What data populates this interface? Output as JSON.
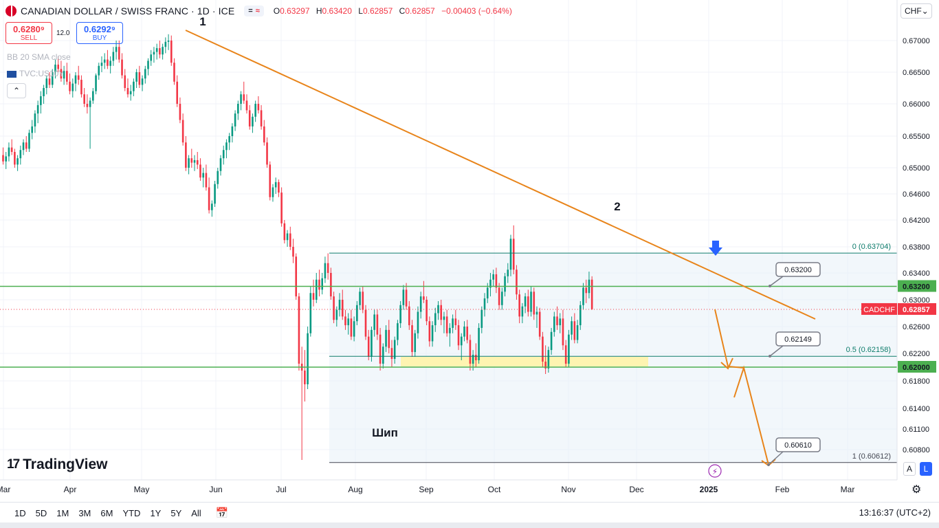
{
  "header": {
    "symbol": "CANADIAN DOLLAR / SWISS FRANC · 1D · ICE",
    "ohlc": {
      "o_label": "O",
      "o": "0.63297",
      "h_label": "H",
      "h": "0.63420",
      "l_label": "L",
      "l": "0.62857",
      "c_label": "C",
      "c": "0.62857",
      "change": "−0.00403 (−0.64%)"
    }
  },
  "trade": {
    "sell_price": "0.6280⁹",
    "sell_label": "SELL",
    "buy_price": "0.6292⁹",
    "buy_label": "BUY",
    "spread": "12.0"
  },
  "indicators": {
    "bb": "BB 20 SMA close",
    "tvc": "TVC:US10Y"
  },
  "collapse_icon": "chevron-up-icon",
  "currency": "CHF",
  "brand": "TradingView",
  "bottom_bar": {
    "ranges": [
      "1D",
      "5D",
      "1M",
      "3M",
      "6M",
      "YTD",
      "1Y",
      "5Y",
      "All"
    ],
    "clock": "13:16:37 (UTC+2)"
  },
  "scale_buttons": {
    "auto": "A",
    "log": "L"
  },
  "colors": {
    "up": "#089981",
    "down": "#f23645",
    "trend": "#e8841a",
    "level": "#4caf50",
    "fib": "#0e7c6b",
    "arrow": "#2962ff"
  },
  "chart_data": {
    "type": "candlestick",
    "y_ticks": [
      "0.67000",
      "0.66500",
      "0.66000",
      "0.65500",
      "0.65000",
      "0.64600",
      "0.64200",
      "0.63800",
      "0.63400",
      "0.63000",
      "0.62600",
      "0.62200",
      "0.61800",
      "0.61400",
      "0.61100",
      "0.60800"
    ],
    "x_ticks": [
      "Mar",
      "Apr",
      "May",
      "Jun",
      "Jul",
      "Aug",
      "Sep",
      "Oct",
      "Nov",
      "Dec",
      "2025",
      "Feb",
      "Mar"
    ],
    "price_labels": {
      "level_1": "0.63200",
      "current_name": "CADCHF",
      "current": "0.62857",
      "level_2": "0.62000"
    },
    "fib": {
      "f0": "0 (0.63704)",
      "f05": "0.5 (0.62158)",
      "f1": "1 (0.60612)",
      "v0": 0.63704,
      "v05": 0.62158,
      "v1": 0.60612
    },
    "callouts": [
      "0.63200",
      "0.62149",
      "0.60610"
    ],
    "annotations": {
      "p1": "1",
      "p2": "2",
      "spike": "Шип"
    },
    "levels": [
      0.632,
      0.62
    ],
    "candles": [
      [
        0.652,
        0.6532,
        0.6505,
        0.651
      ],
      [
        0.651,
        0.6525,
        0.6498,
        0.6518
      ],
      [
        0.6518,
        0.654,
        0.651,
        0.6532
      ],
      [
        0.6532,
        0.6545,
        0.652,
        0.6525
      ],
      [
        0.6525,
        0.653,
        0.65,
        0.6505
      ],
      [
        0.6505,
        0.652,
        0.6495,
        0.6515
      ],
      [
        0.6515,
        0.6535,
        0.6505,
        0.6528
      ],
      [
        0.6528,
        0.6545,
        0.652,
        0.654
      ],
      [
        0.654,
        0.655,
        0.6525,
        0.653
      ],
      [
        0.653,
        0.656,
        0.6525,
        0.6555
      ],
      [
        0.6555,
        0.6575,
        0.6545,
        0.6565
      ],
      [
        0.6565,
        0.659,
        0.6555,
        0.6585
      ],
      [
        0.6585,
        0.6605,
        0.657,
        0.6598
      ],
      [
        0.6598,
        0.662,
        0.6585,
        0.6612
      ],
      [
        0.6612,
        0.663,
        0.66,
        0.6625
      ],
      [
        0.6625,
        0.6645,
        0.6615,
        0.664
      ],
      [
        0.664,
        0.665,
        0.6625,
        0.663
      ],
      [
        0.663,
        0.6655,
        0.6625,
        0.665
      ],
      [
        0.665,
        0.667,
        0.664,
        0.6662
      ],
      [
        0.6662,
        0.6675,
        0.665,
        0.6655
      ],
      [
        0.6655,
        0.6668,
        0.6635,
        0.664
      ],
      [
        0.664,
        0.666,
        0.663,
        0.6652
      ],
      [
        0.6652,
        0.6665,
        0.663,
        0.6635
      ],
      [
        0.6635,
        0.6648,
        0.6615,
        0.662
      ],
      [
        0.662,
        0.664,
        0.661,
        0.6632
      ],
      [
        0.6632,
        0.665,
        0.662,
        0.6645
      ],
      [
        0.6645,
        0.666,
        0.663,
        0.6638
      ],
      [
        0.6638,
        0.6645,
        0.661,
        0.6615
      ],
      [
        0.6615,
        0.6625,
        0.6595,
        0.66
      ],
      [
        0.66,
        0.6615,
        0.6585,
        0.6595
      ],
      [
        0.6595,
        0.661,
        0.653,
        0.6605
      ],
      [
        0.6605,
        0.6625,
        0.66,
        0.662
      ],
      [
        0.662,
        0.6648,
        0.6615,
        0.6645
      ],
      [
        0.6645,
        0.6665,
        0.6638,
        0.666
      ],
      [
        0.666,
        0.6675,
        0.665,
        0.6665
      ],
      [
        0.6665,
        0.668,
        0.6655,
        0.667
      ],
      [
        0.667,
        0.6685,
        0.6655,
        0.666
      ],
      [
        0.666,
        0.6675,
        0.6648,
        0.6668
      ],
      [
        0.6668,
        0.669,
        0.666,
        0.6682
      ],
      [
        0.6682,
        0.67,
        0.667,
        0.669
      ],
      [
        0.669,
        0.67,
        0.6665,
        0.667
      ],
      [
        0.667,
        0.668,
        0.664,
        0.6645
      ],
      [
        0.6645,
        0.6655,
        0.662,
        0.6625
      ],
      [
        0.6625,
        0.664,
        0.661,
        0.6615
      ],
      [
        0.6615,
        0.663,
        0.6605,
        0.662
      ],
      [
        0.662,
        0.664,
        0.6612,
        0.6635
      ],
      [
        0.6635,
        0.6655,
        0.6625,
        0.665
      ],
      [
        0.665,
        0.666,
        0.6625,
        0.663
      ],
      [
        0.663,
        0.6645,
        0.662,
        0.664
      ],
      [
        0.664,
        0.666,
        0.6632,
        0.6655
      ],
      [
        0.6655,
        0.6672,
        0.6645,
        0.6668
      ],
      [
        0.6668,
        0.6685,
        0.666,
        0.6678
      ],
      [
        0.6678,
        0.669,
        0.6665,
        0.6682
      ],
      [
        0.6682,
        0.6695,
        0.667,
        0.6688
      ],
      [
        0.6688,
        0.67,
        0.6672,
        0.6678
      ],
      [
        0.6678,
        0.6695,
        0.667,
        0.669
      ],
      [
        0.669,
        0.6705,
        0.668,
        0.6698
      ],
      [
        0.6698,
        0.671,
        0.6685,
        0.67
      ],
      [
        0.67,
        0.6708,
        0.666,
        0.6665
      ],
      [
        0.6665,
        0.6672,
        0.663,
        0.6635
      ],
      [
        0.6635,
        0.6645,
        0.6595,
        0.66
      ],
      [
        0.66,
        0.661,
        0.657,
        0.6575
      ],
      [
        0.6575,
        0.6585,
        0.6535,
        0.654
      ],
      [
        0.654,
        0.655,
        0.6495,
        0.65
      ],
      [
        0.65,
        0.652,
        0.649,
        0.6515
      ],
      [
        0.6515,
        0.653,
        0.65,
        0.6508
      ],
      [
        0.6508,
        0.652,
        0.6495,
        0.6512
      ],
      [
        0.6512,
        0.6525,
        0.6498,
        0.6505
      ],
      [
        0.6505,
        0.6515,
        0.648,
        0.6485
      ],
      [
        0.6485,
        0.65,
        0.647,
        0.6492
      ],
      [
        0.6492,
        0.6505,
        0.6465,
        0.647
      ],
      [
        0.647,
        0.6485,
        0.643,
        0.6435
      ],
      [
        0.6435,
        0.645,
        0.6425,
        0.6445
      ],
      [
        0.6445,
        0.648,
        0.644,
        0.6475
      ],
      [
        0.6475,
        0.65,
        0.6468,
        0.6495
      ],
      [
        0.6495,
        0.652,
        0.6488,
        0.6515
      ],
      [
        0.6515,
        0.6535,
        0.6505,
        0.6528
      ],
      [
        0.6528,
        0.6545,
        0.6515,
        0.654
      ],
      [
        0.654,
        0.6555,
        0.6528,
        0.655
      ],
      [
        0.655,
        0.657,
        0.654,
        0.6565
      ],
      [
        0.6565,
        0.659,
        0.6558,
        0.6585
      ],
      [
        0.6585,
        0.6605,
        0.6575,
        0.66
      ],
      [
        0.66,
        0.662,
        0.659,
        0.6615
      ],
      [
        0.6615,
        0.6635,
        0.66,
        0.6605
      ],
      [
        0.6605,
        0.6615,
        0.6585,
        0.659
      ],
      [
        0.659,
        0.6598,
        0.656,
        0.6565
      ],
      [
        0.6565,
        0.6585,
        0.6555,
        0.658
      ],
      [
        0.658,
        0.6605,
        0.6572,
        0.66
      ],
      [
        0.66,
        0.6612,
        0.6585,
        0.659
      ],
      [
        0.659,
        0.6598,
        0.656,
        0.6565
      ],
      [
        0.6565,
        0.6575,
        0.6535,
        0.654
      ],
      [
        0.654,
        0.6548,
        0.65,
        0.6505
      ],
      [
        0.6505,
        0.651,
        0.645,
        0.6455
      ],
      [
        0.6455,
        0.6475,
        0.6448,
        0.647
      ],
      [
        0.647,
        0.6485,
        0.646,
        0.6478
      ],
      [
        0.6478,
        0.6482,
        0.6455,
        0.6462
      ],
      [
        0.6462,
        0.647,
        0.641,
        0.6415
      ],
      [
        0.6415,
        0.642,
        0.6385,
        0.639
      ],
      [
        0.639,
        0.6405,
        0.638,
        0.64
      ],
      [
        0.64,
        0.641,
        0.6375,
        0.638
      ],
      [
        0.638,
        0.6392,
        0.6355,
        0.6365
      ],
      [
        0.6365,
        0.637,
        0.63,
        0.6305
      ],
      [
        0.6305,
        0.631,
        0.6195,
        0.6205
      ],
      [
        0.6205,
        0.623,
        0.6065,
        0.6195
      ],
      [
        0.6195,
        0.6225,
        0.615,
        0.6175
      ],
      [
        0.6175,
        0.626,
        0.6168,
        0.625
      ],
      [
        0.625,
        0.632,
        0.6245,
        0.631
      ],
      [
        0.631,
        0.633,
        0.629,
        0.63
      ],
      [
        0.63,
        0.634,
        0.6295,
        0.633
      ],
      [
        0.633,
        0.6345,
        0.6305,
        0.6315
      ],
      [
        0.6315,
        0.634,
        0.6308,
        0.6332
      ],
      [
        0.6332,
        0.6365,
        0.6325,
        0.6355
      ],
      [
        0.6355,
        0.637,
        0.633,
        0.634
      ],
      [
        0.634,
        0.6348,
        0.63,
        0.6305
      ],
      [
        0.6305,
        0.6312,
        0.6265,
        0.627
      ],
      [
        0.627,
        0.629,
        0.626,
        0.6285
      ],
      [
        0.6285,
        0.631,
        0.6275,
        0.63
      ],
      [
        0.63,
        0.6315,
        0.627,
        0.6275
      ],
      [
        0.6275,
        0.6285,
        0.6255,
        0.6262
      ],
      [
        0.6262,
        0.628,
        0.6248,
        0.6272
      ],
      [
        0.6272,
        0.6285,
        0.624,
        0.6245
      ],
      [
        0.6245,
        0.6275,
        0.6238,
        0.6268
      ],
      [
        0.6268,
        0.6298,
        0.6262,
        0.6292
      ],
      [
        0.6292,
        0.6318,
        0.6285,
        0.6312
      ],
      [
        0.6312,
        0.632,
        0.628,
        0.6285
      ],
      [
        0.6285,
        0.6292,
        0.624,
        0.6245
      ],
      [
        0.6245,
        0.6255,
        0.621,
        0.6215
      ],
      [
        0.6215,
        0.626,
        0.6208,
        0.6255
      ],
      [
        0.6255,
        0.6285,
        0.6245,
        0.6278
      ],
      [
        0.6278,
        0.6285,
        0.624,
        0.6248
      ],
      [
        0.6248,
        0.6258,
        0.6195,
        0.6205
      ],
      [
        0.6205,
        0.6235,
        0.6198,
        0.623
      ],
      [
        0.623,
        0.6262,
        0.6222,
        0.6255
      ],
      [
        0.6255,
        0.627,
        0.622,
        0.6228
      ],
      [
        0.6228,
        0.624,
        0.62,
        0.6212
      ],
      [
        0.6212,
        0.6245,
        0.6205,
        0.624
      ],
      [
        0.624,
        0.627,
        0.6232,
        0.6265
      ],
      [
        0.6265,
        0.6298,
        0.6258,
        0.6292
      ],
      [
        0.6292,
        0.6322,
        0.6285,
        0.6315
      ],
      [
        0.6315,
        0.6325,
        0.6285,
        0.629
      ],
      [
        0.629,
        0.6298,
        0.6255,
        0.6262
      ],
      [
        0.6262,
        0.627,
        0.6215,
        0.6222
      ],
      [
        0.6222,
        0.6255,
        0.6215,
        0.625
      ],
      [
        0.625,
        0.629,
        0.6242,
        0.6282
      ],
      [
        0.6282,
        0.6312,
        0.6272,
        0.6305
      ],
      [
        0.6305,
        0.6328,
        0.6295,
        0.63
      ],
      [
        0.63,
        0.6305,
        0.6262,
        0.6268
      ],
      [
        0.6268,
        0.6275,
        0.623,
        0.6238
      ],
      [
        0.6238,
        0.6268,
        0.623,
        0.6262
      ],
      [
        0.6262,
        0.6288,
        0.6252,
        0.628
      ],
      [
        0.628,
        0.6298,
        0.627,
        0.6292
      ],
      [
        0.6292,
        0.63,
        0.6262,
        0.627
      ],
      [
        0.627,
        0.6282,
        0.625,
        0.6275
      ],
      [
        0.6275,
        0.6285,
        0.6245,
        0.625
      ],
      [
        0.625,
        0.6265,
        0.623,
        0.6258
      ],
      [
        0.6258,
        0.6278,
        0.625,
        0.6272
      ],
      [
        0.6272,
        0.6285,
        0.6255,
        0.6262
      ],
      [
        0.6262,
        0.627,
        0.6225,
        0.6232
      ],
      [
        0.6232,
        0.625,
        0.621,
        0.6245
      ],
      [
        0.6245,
        0.6268,
        0.6238,
        0.626
      ],
      [
        0.626,
        0.627,
        0.6235,
        0.624
      ],
      [
        0.624,
        0.6248,
        0.6195,
        0.6205
      ],
      [
        0.6205,
        0.6225,
        0.6195,
        0.6218
      ],
      [
        0.6218,
        0.6235,
        0.62,
        0.621
      ],
      [
        0.621,
        0.6265,
        0.6205,
        0.6258
      ],
      [
        0.6258,
        0.629,
        0.625,
        0.6285
      ],
      [
        0.6285,
        0.631,
        0.6275,
        0.6302
      ],
      [
        0.6302,
        0.6325,
        0.6295,
        0.6318
      ],
      [
        0.6318,
        0.634,
        0.6305,
        0.633
      ],
      [
        0.633,
        0.6345,
        0.632,
        0.6338
      ],
      [
        0.6338,
        0.6348,
        0.631,
        0.6318
      ],
      [
        0.6318,
        0.6325,
        0.6285,
        0.6292
      ],
      [
        0.6292,
        0.6318,
        0.6285,
        0.6312
      ],
      [
        0.6312,
        0.634,
        0.6305,
        0.6335
      ],
      [
        0.6335,
        0.6355,
        0.6325,
        0.6345
      ],
      [
        0.6345,
        0.6398,
        0.6335,
        0.6392
      ],
      [
        0.6392,
        0.6412,
        0.6338,
        0.6345
      ],
      [
        0.6345,
        0.6352,
        0.63,
        0.6308
      ],
      [
        0.6308,
        0.6315,
        0.6265,
        0.6275
      ],
      [
        0.6275,
        0.6295,
        0.6265,
        0.629
      ],
      [
        0.629,
        0.631,
        0.628,
        0.6305
      ],
      [
        0.6305,
        0.6315,
        0.6275,
        0.6282
      ],
      [
        0.6282,
        0.632,
        0.6275,
        0.6312
      ],
      [
        0.6312,
        0.6318,
        0.627,
        0.6278
      ],
      [
        0.6278,
        0.629,
        0.6258,
        0.6282
      ],
      [
        0.6282,
        0.6288,
        0.624,
        0.6245
      ],
      [
        0.6245,
        0.6252,
        0.62,
        0.6208
      ],
      [
        0.6208,
        0.6232,
        0.619,
        0.6198
      ],
      [
        0.6198,
        0.623,
        0.6192,
        0.6225
      ],
      [
        0.6225,
        0.6258,
        0.6218,
        0.6252
      ],
      [
        0.6252,
        0.6282,
        0.6245,
        0.6275
      ],
      [
        0.6275,
        0.629,
        0.6255,
        0.6262
      ],
      [
        0.6262,
        0.628,
        0.625,
        0.6272
      ],
      [
        0.6272,
        0.6285,
        0.6225,
        0.6232
      ],
      [
        0.6232,
        0.624,
        0.62,
        0.6205
      ],
      [
        0.6205,
        0.6255,
        0.62,
        0.6248
      ],
      [
        0.6248,
        0.6275,
        0.624,
        0.6268
      ],
      [
        0.6268,
        0.628,
        0.6235,
        0.624
      ],
      [
        0.624,
        0.627,
        0.6235,
        0.6262
      ],
      [
        0.6262,
        0.6298,
        0.6255,
        0.6292
      ],
      [
        0.6292,
        0.6325,
        0.6285,
        0.6318
      ],
      [
        0.6318,
        0.633,
        0.6295,
        0.631
      ],
      [
        0.631,
        0.6342,
        0.6302,
        0.633
      ],
      [
        0.633,
        0.6335,
        0.6285,
        0.6286
      ]
    ]
  }
}
